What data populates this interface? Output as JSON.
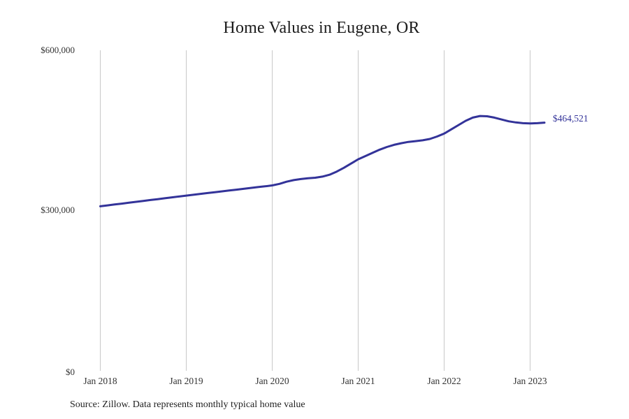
{
  "title": "Home Values in Eugene, OR",
  "end_label": "$464,521",
  "source_note": "Source: Zillow. Data represents monthly typical home value",
  "colors": {
    "line": "#333399",
    "gridline": "#c8c8c8",
    "tick_text": "#333333",
    "title_text": "#1b1b1b"
  },
  "chart_data": {
    "type": "line",
    "title": "Home Values in Eugene, OR",
    "xlabel": "",
    "ylabel": "",
    "ylim": [
      0,
      600000
    ],
    "y_tick_labels": [
      "$600,000",
      "$300,000",
      "$0"
    ],
    "y_tick_values": [
      600000,
      300000,
      0
    ],
    "x_tick_labels": [
      "Jan 2018",
      "Jan 2019",
      "Jan 2020",
      "Jan 2021",
      "Jan 2022",
      "Jan 2023"
    ],
    "grid": "vertical-only",
    "legend": "none",
    "annotation": {
      "text": "$464,521",
      "value": 464521,
      "position": "line-end"
    },
    "x_start_month": "Jan 2018",
    "x_end_month": "Mar 2023",
    "series": [
      {
        "name": "Typical home value (monthly)",
        "values": [
          308000,
          309700,
          311400,
          313000,
          314700,
          316300,
          318000,
          319700,
          321300,
          323000,
          324700,
          326300,
          328000,
          329600,
          331200,
          332800,
          334400,
          336000,
          337500,
          339100,
          340700,
          342300,
          343900,
          345400,
          347000,
          350000,
          354000,
          357000,
          359000,
          360500,
          361500,
          363500,
          367000,
          373000,
          380000,
          388000,
          396000,
          402000,
          408000,
          414000,
          419000,
          423000,
          426000,
          428500,
          430000,
          431500,
          434000,
          438500,
          444000,
          452000,
          460000,
          468000,
          474000,
          477000,
          476500,
          474000,
          470500,
          467000,
          465000,
          463500,
          463000,
          463500,
          464521
        ]
      }
    ]
  }
}
